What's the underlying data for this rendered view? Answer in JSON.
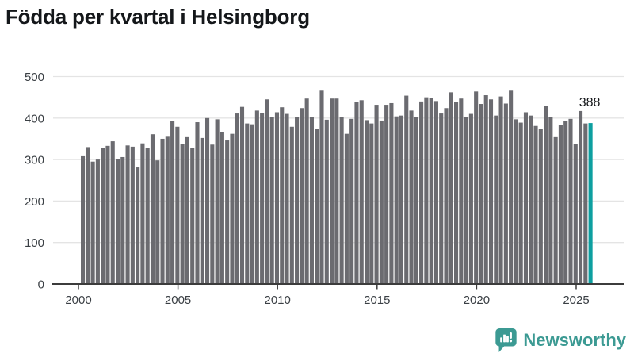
{
  "title": "Födda per kvartal i Helsingborg",
  "chart_data": {
    "type": "bar",
    "title": "Födda per kvartal i Helsingborg",
    "x_unit": "quarter",
    "start_period": "2000 Q1",
    "end_period": "2025 Q3",
    "values": [
      308,
      330,
      295,
      300,
      327,
      333,
      344,
      302,
      306,
      334,
      331,
      281,
      339,
      328,
      361,
      298,
      350,
      355,
      393,
      379,
      338,
      354,
      327,
      390,
      352,
      400,
      336,
      397,
      367,
      346,
      362,
      411,
      427,
      387,
      385,
      418,
      413,
      445,
      403,
      414,
      426,
      410,
      379,
      403,
      424,
      447,
      403,
      373,
      466,
      396,
      447,
      447,
      403,
      362,
      398,
      438,
      443,
      395,
      387,
      432,
      394,
      432,
      436,
      404,
      406,
      454,
      418,
      403,
      440,
      450,
      448,
      441,
      411,
      424,
      462,
      438,
      447,
      403,
      410,
      464,
      434,
      455,
      445,
      406,
      452,
      435,
      466,
      397,
      389,
      414,
      406,
      381,
      373,
      429,
      403,
      354,
      383,
      392,
      398,
      338,
      417,
      387,
      388
    ],
    "highlight": {
      "index": 102,
      "period": "2025 Q3",
      "value": 388,
      "value_label": "388"
    },
    "ylim": [
      0,
      500
    ],
    "yticks": [
      "0",
      "100",
      "200",
      "300",
      "400",
      "500"
    ],
    "xticks": [
      "2000",
      "2005",
      "2010",
      "2015",
      "2020",
      "2025"
    ],
    "grid": "horizontal",
    "legend": "none",
    "colors": {
      "bar": "#6b6b70",
      "highlight_bar": "#0d9fa0",
      "axis_text": "#3a3f44",
      "grid_line": "#e4e4e4",
      "axis_line": "#3c3c3c",
      "annotation_text": "#17191c"
    }
  },
  "footer": {
    "brand": "Newsworthy",
    "brand_color": "#3c9a93",
    "logo_icon": "bar-chart-speech-bubble-icon"
  }
}
